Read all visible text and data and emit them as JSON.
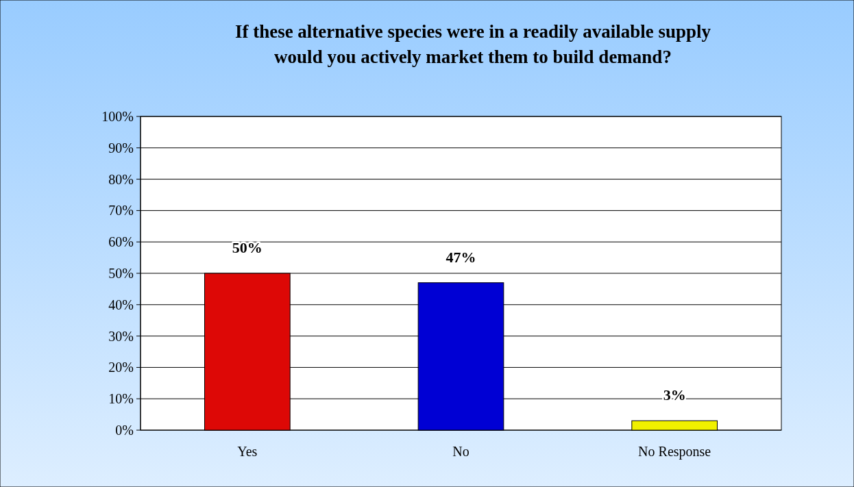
{
  "chart_data": {
    "type": "bar",
    "title": "If these alternative species were in a readily available supply\nwould you actively market them to build demand?",
    "categories": [
      "Yes",
      "No",
      "No Response"
    ],
    "values": [
      50,
      47,
      3
    ],
    "colors": [
      "#dd0806",
      "#0000d4",
      "#f0f000"
    ],
    "value_labels": [
      "50%",
      "47%",
      "3%"
    ],
    "ylim": [
      0,
      100
    ],
    "yticks": [
      {
        "value": 0,
        "label": "0%"
      },
      {
        "value": 10,
        "label": "10%"
      },
      {
        "value": 20,
        "label": "20%"
      },
      {
        "value": 30,
        "label": "30%"
      },
      {
        "value": 40,
        "label": "40%"
      },
      {
        "value": 50,
        "label": "50%"
      },
      {
        "value": 60,
        "label": "60%"
      },
      {
        "value": 70,
        "label": "70%"
      },
      {
        "value": 80,
        "label": "80%"
      },
      {
        "value": 90,
        "label": "90%"
      },
      {
        "value": 100,
        "label": "100%"
      }
    ],
    "grid": true
  }
}
